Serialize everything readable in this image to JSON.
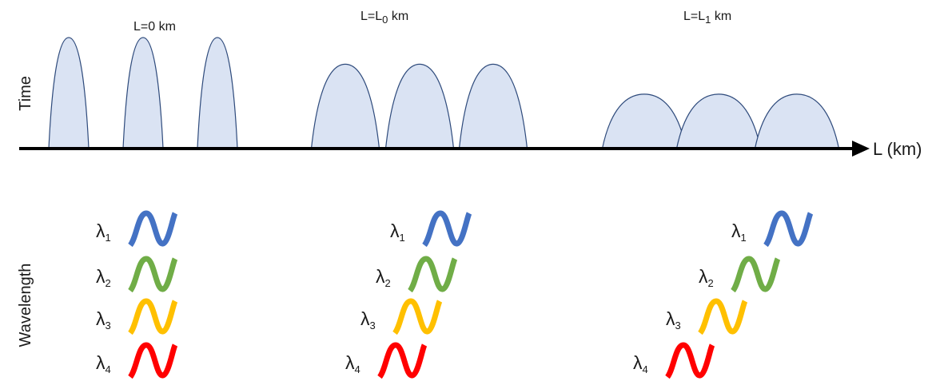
{
  "axes": {
    "time_label": "Time",
    "wavelength_label": "Wavelength",
    "distance_label": "L (km)"
  },
  "stages": [
    {
      "label_pre": "L=",
      "label_base": "0",
      "label_sub": "",
      "label_post": " km",
      "width_factor": 1.0,
      "height_factor": 1.0
    },
    {
      "label_pre": "L=L",
      "label_base": "",
      "label_sub": "0",
      "label_post": " km",
      "width_factor": 1.7,
      "height_factor": 0.76
    },
    {
      "label_pre": "L=L",
      "label_base": "",
      "label_sub": "1",
      "label_post": " km",
      "width_factor": 2.1,
      "height_factor": 0.49
    }
  ],
  "wavelengths": [
    {
      "symbol": "λ",
      "sub": "1",
      "color": "#4472C4"
    },
    {
      "symbol": "λ",
      "sub": "2",
      "color": "#70AD47"
    },
    {
      "symbol": "λ",
      "sub": "3",
      "color": "#FFC000"
    },
    {
      "symbol": "λ",
      "sub": "4",
      "color": "#FF0000"
    }
  ],
  "colors": {
    "pulse_fill": "#dae3f3",
    "pulse_stroke": "#2f4b7c",
    "axis": "#000000"
  }
}
